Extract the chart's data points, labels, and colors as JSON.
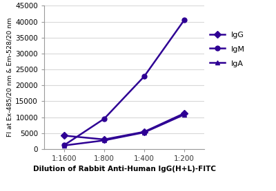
{
  "x_labels": [
    "1:1600",
    "1:800",
    "1:400",
    "1:200"
  ],
  "x_values": [
    1,
    2,
    3,
    4
  ],
  "IgG": [
    4200,
    3000,
    5400,
    11200
  ],
  "IgM": [
    1200,
    9500,
    22800,
    40500
  ],
  "IgA": [
    1100,
    2700,
    5200,
    10800
  ],
  "line_color": "#2e0094",
  "ylabel": "FI at Ex-485/20 nm & Em-528/20 nm",
  "xlabel": "Dilution of Rabbit Anti-Human IgG(H+L)-FITC",
  "ylim": [
    0,
    45000
  ],
  "yticks": [
    0,
    5000,
    10000,
    15000,
    20000,
    25000,
    30000,
    35000,
    40000,
    45000
  ],
  "background_color": "#ffffff",
  "plot_bg_color": "#ffffff",
  "grid_color": "#d8d8d8",
  "line_width": 1.8,
  "marker_size": 5
}
